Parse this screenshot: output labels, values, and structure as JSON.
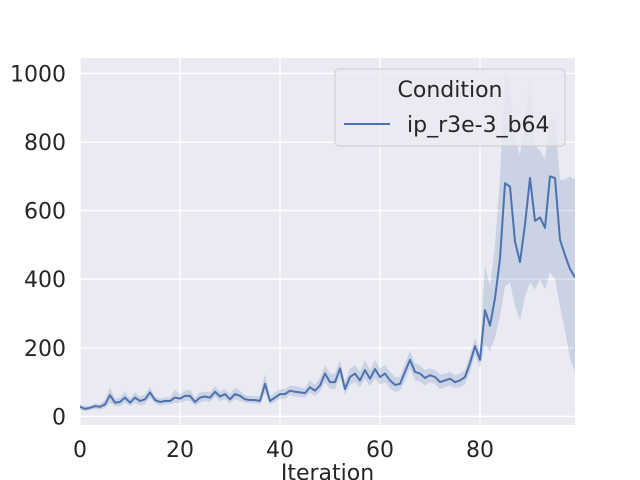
{
  "chart_data": {
    "type": "line",
    "title": "",
    "xlabel": "Iteration",
    "ylabel": "",
    "xlim": [
      0,
      99
    ],
    "ylim": [
      -25,
      1045
    ],
    "x_ticks": [
      0,
      20,
      40,
      60,
      80
    ],
    "y_ticks": [
      0,
      200,
      400,
      600,
      800,
      1000
    ],
    "grid": true,
    "legend": {
      "title": "Condition",
      "placement": "top-right"
    },
    "colors": {
      "line": "#4c72b0",
      "band": "#4c72b0",
      "background": "#eaeaf2",
      "grid": "#ffffff"
    },
    "series": [
      {
        "name": "ip_r3e-3_b64",
        "x": [
          0,
          1,
          2,
          3,
          4,
          5,
          6,
          7,
          8,
          9,
          10,
          11,
          12,
          13,
          14,
          15,
          16,
          17,
          18,
          19,
          20,
          21,
          22,
          23,
          24,
          25,
          26,
          27,
          28,
          29,
          30,
          31,
          32,
          33,
          34,
          35,
          36,
          37,
          38,
          39,
          40,
          41,
          42,
          43,
          44,
          45,
          46,
          47,
          48,
          49,
          50,
          51,
          52,
          53,
          54,
          55,
          56,
          57,
          58,
          59,
          60,
          61,
          62,
          63,
          64,
          65,
          66,
          67,
          68,
          69,
          70,
          71,
          72,
          73,
          74,
          75,
          76,
          77,
          78,
          79,
          80,
          81,
          82,
          83,
          84,
          85,
          86,
          87,
          88,
          89,
          90,
          91,
          92,
          93,
          94,
          95,
          96,
          97,
          98,
          99
        ],
        "y": [
          28,
          22,
          25,
          30,
          28,
          35,
          62,
          40,
          42,
          55,
          40,
          55,
          45,
          50,
          70,
          48,
          42,
          45,
          45,
          55,
          52,
          60,
          60,
          42,
          55,
          58,
          55,
          72,
          58,
          65,
          50,
          65,
          60,
          50,
          48,
          48,
          45,
          95,
          45,
          55,
          65,
          65,
          75,
          72,
          70,
          68,
          85,
          75,
          90,
          125,
          100,
          100,
          140,
          80,
          115,
          125,
          105,
          135,
          110,
          138,
          115,
          125,
          105,
          92,
          95,
          130,
          165,
          130,
          125,
          112,
          120,
          115,
          100,
          105,
          110,
          100,
          105,
          115,
          155,
          205,
          165,
          310,
          265,
          345,
          460,
          680,
          670,
          510,
          450,
          560,
          695,
          570,
          580,
          550,
          700,
          695,
          515,
          470,
          430,
          405
        ],
        "upper": [
          35,
          30,
          32,
          38,
          36,
          48,
          85,
          52,
          55,
          72,
          52,
          70,
          58,
          65,
          85,
          58,
          52,
          55,
          55,
          78,
          65,
          75,
          78,
          55,
          70,
          72,
          70,
          88,
          72,
          80,
          65,
          85,
          75,
          62,
          60,
          60,
          58,
          125,
          58,
          70,
          80,
          80,
          90,
          88,
          85,
          82,
          105,
          92,
          112,
          150,
          125,
          125,
          165,
          100,
          140,
          150,
          130,
          165,
          135,
          165,
          140,
          150,
          130,
          115,
          115,
          155,
          190,
          155,
          148,
          135,
          140,
          135,
          122,
          125,
          130,
          120,
          125,
          135,
          180,
          230,
          190,
          440,
          380,
          500,
          700,
          1000,
          960,
          810,
          760,
          860,
          1000,
          790,
          775,
          750,
          870,
          870,
          690,
          690,
          700,
          690
        ],
        "lower": [
          20,
          15,
          18,
          22,
          20,
          25,
          40,
          30,
          30,
          40,
          30,
          40,
          32,
          36,
          55,
          38,
          32,
          35,
          35,
          40,
          40,
          45,
          45,
          32,
          40,
          45,
          42,
          58,
          45,
          50,
          38,
          50,
          45,
          40,
          38,
          38,
          35,
          70,
          35,
          42,
          52,
          52,
          62,
          58,
          56,
          55,
          68,
          60,
          72,
          100,
          80,
          80,
          115,
          62,
          92,
          100,
          85,
          110,
          88,
          112,
          92,
          100,
          82,
          72,
          75,
          105,
          140,
          105,
          102,
          90,
          100,
          95,
          80,
          85,
          90,
          82,
          85,
          95,
          130,
          180,
          140,
          210,
          190,
          230,
          290,
          380,
          390,
          320,
          280,
          350,
          390,
          370,
          400,
          370,
          420,
          400,
          320,
          250,
          170,
          130
        ]
      }
    ]
  }
}
